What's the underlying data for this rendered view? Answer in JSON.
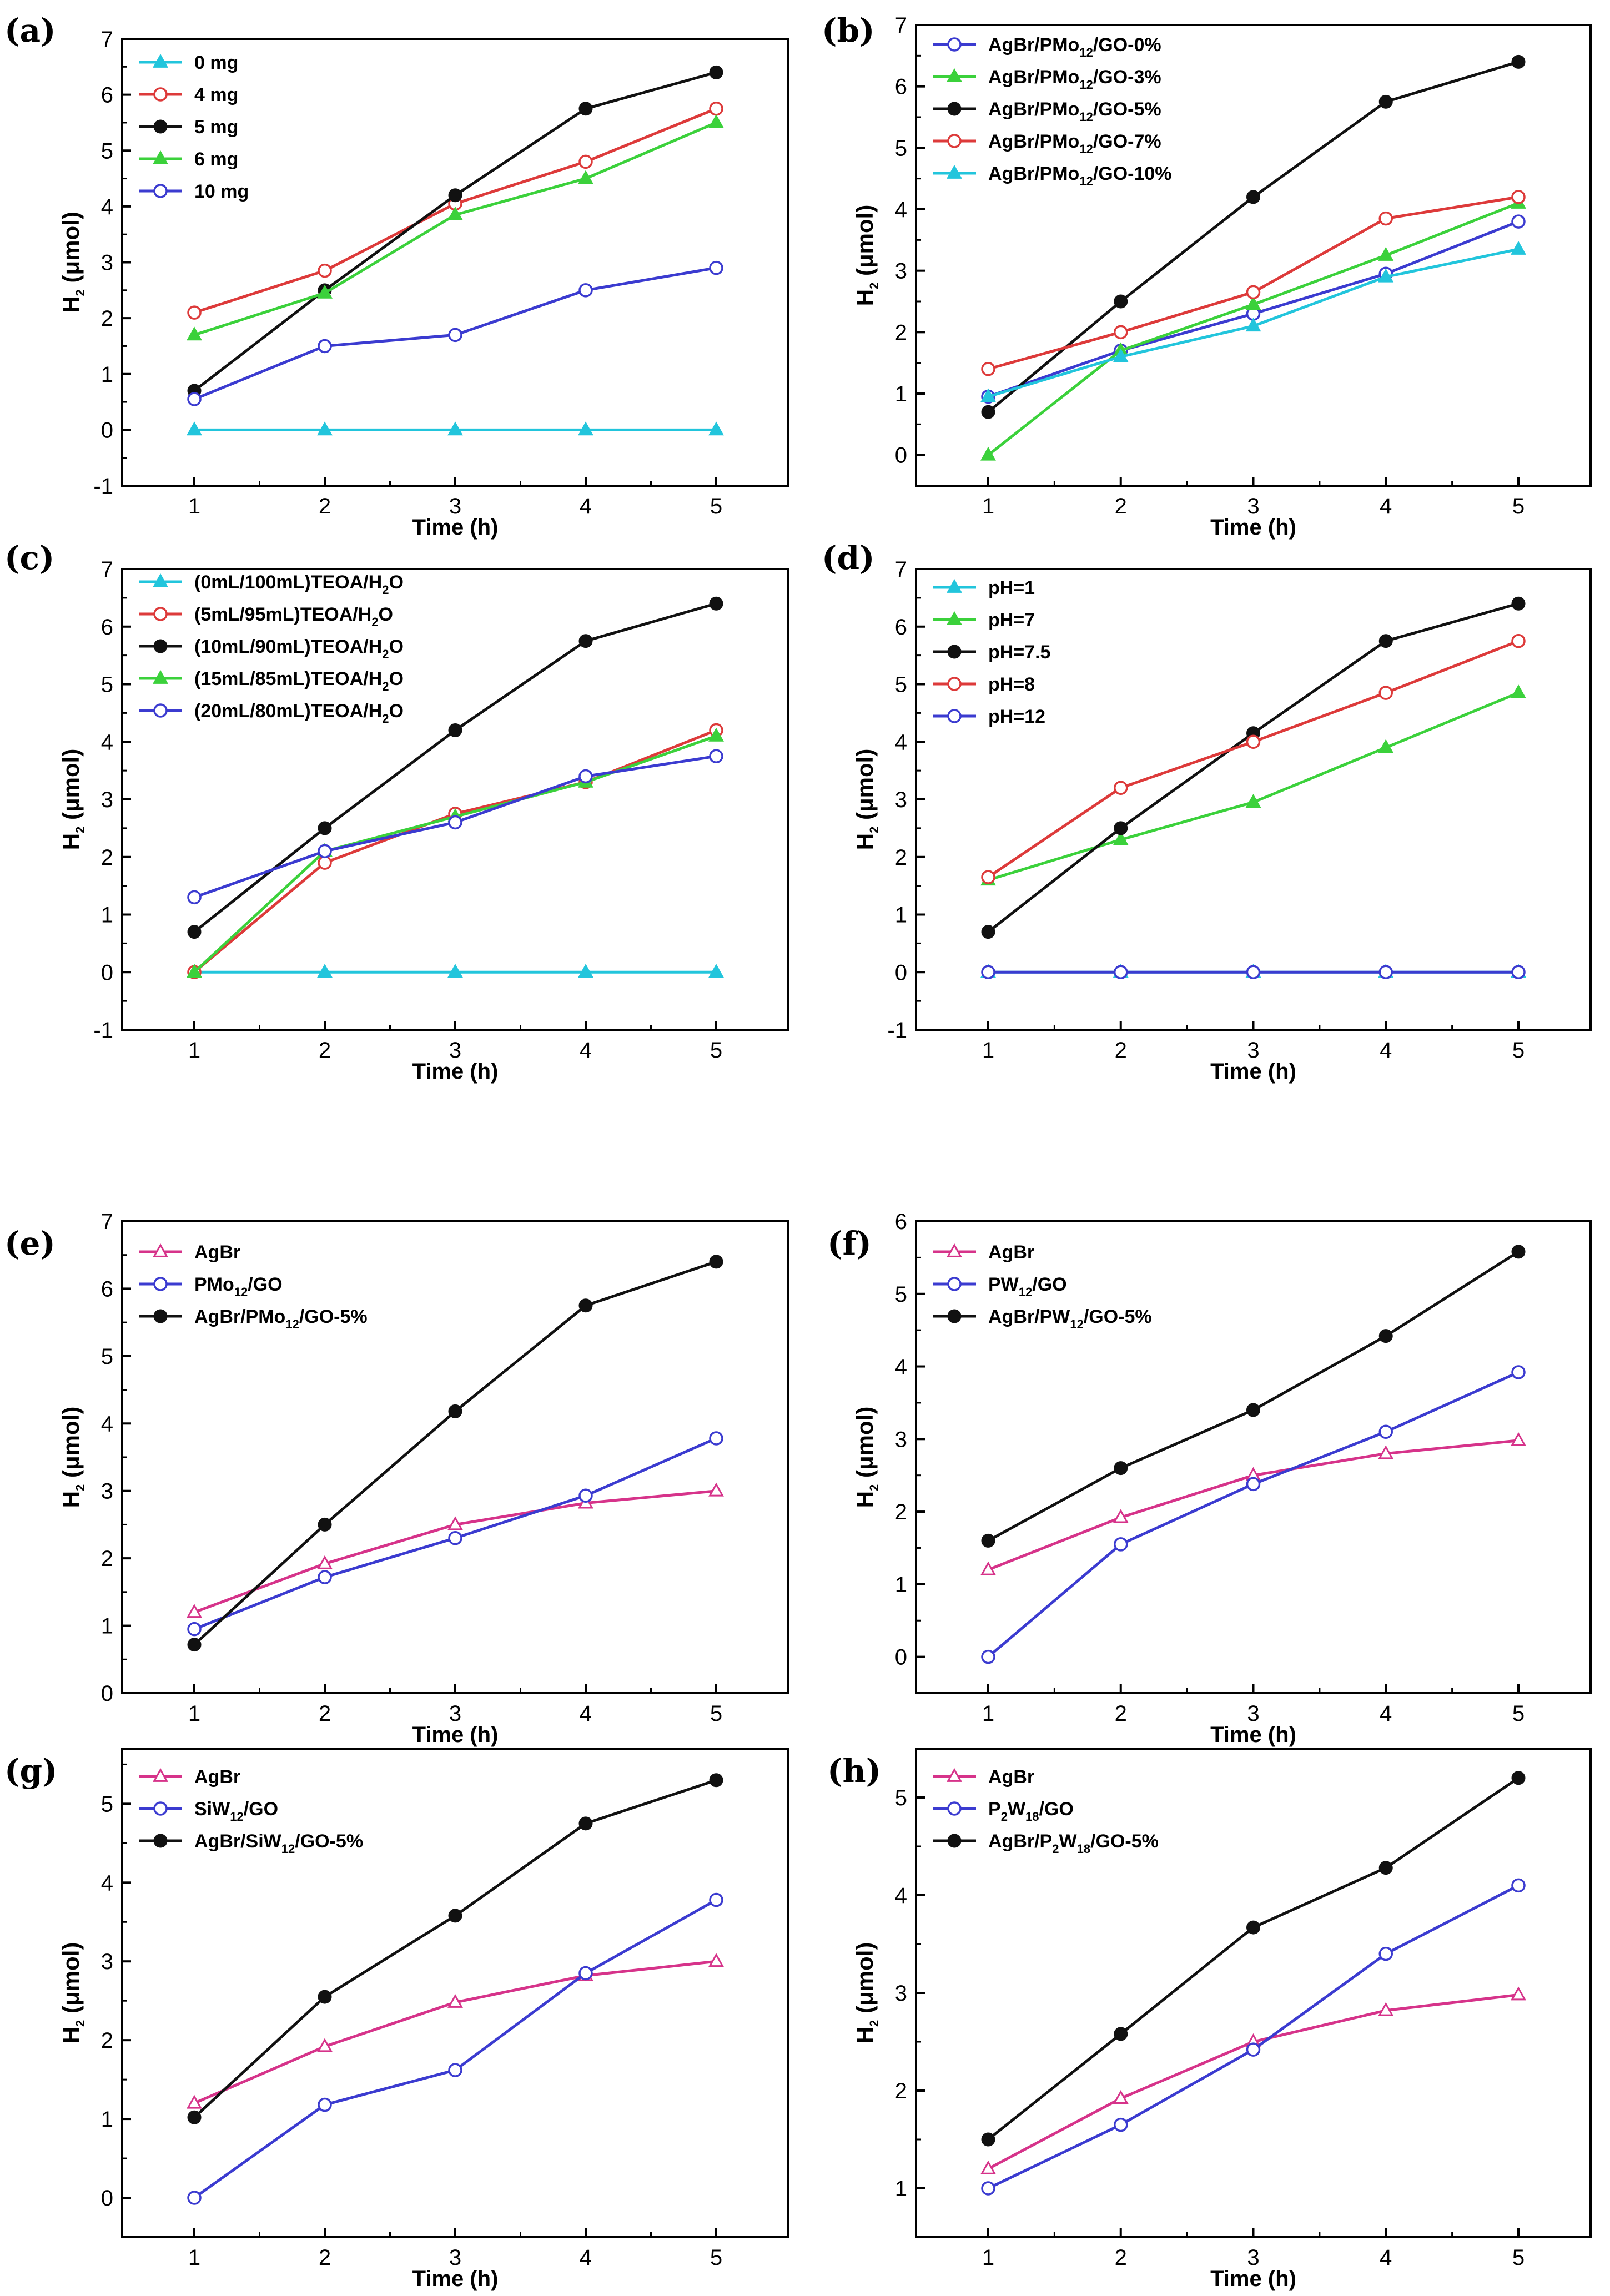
{
  "figure": {
    "background": "#ffffff"
  },
  "chart_data": [
    {
      "panel": "(a)",
      "type": "line",
      "x": [
        1,
        2,
        3,
        4,
        5
      ],
      "xlabel": "Time (h)",
      "ylabel": "H2 (μmol)",
      "ylim": [
        -1,
        7
      ],
      "xticks": [
        "1",
        "2",
        "3",
        "4",
        "5"
      ],
      "yticks": [
        "-1",
        "0",
        "1",
        "2",
        "3",
        "4",
        "5",
        "6",
        "7"
      ],
      "legend_position": "top-left",
      "series": [
        {
          "name": "0 mg",
          "color": "#22c5dc",
          "marker": "triangle",
          "values": [
            0,
            0,
            0,
            0,
            0
          ]
        },
        {
          "name": "4 mg",
          "color": "#dd3a3a",
          "marker": "circle-open",
          "values": [
            2.1,
            2.85,
            4.05,
            4.8,
            5.75
          ]
        },
        {
          "name": "5 mg",
          "color": "#111111",
          "marker": "circle-filled",
          "values": [
            0.7,
            2.5,
            4.2,
            5.75,
            6.4
          ]
        },
        {
          "name": "6 mg",
          "color": "#3bd13b",
          "marker": "triangle",
          "values": [
            1.7,
            2.45,
            3.85,
            4.5,
            5.5
          ]
        },
        {
          "name": "10 mg",
          "color": "#3b3bd0",
          "marker": "circle-open",
          "values": [
            0.55,
            1.5,
            1.7,
            2.5,
            2.9
          ]
        }
      ]
    },
    {
      "panel": "(b)",
      "type": "line",
      "x": [
        1,
        2,
        3,
        4,
        5
      ],
      "xlabel": "Time (h)",
      "ylabel": "H2 (μmol)",
      "ylim": [
        -0.5,
        7
      ],
      "xticks": [
        "1",
        "2",
        "3",
        "4",
        "5"
      ],
      "yticks": [
        "0",
        "1",
        "2",
        "3",
        "4",
        "5",
        "6",
        "7"
      ],
      "legend_position": "top-left",
      "series": [
        {
          "name": "AgBr/PMo12/GO-0%",
          "label_parts": [
            "AgBr/PMo",
            "12",
            "/GO-0%"
          ],
          "color": "#3b3bd0",
          "marker": "circle-open",
          "values": [
            0.95,
            1.7,
            2.3,
            2.95,
            3.8
          ]
        },
        {
          "name": "AgBr/PMo12/GO-3%",
          "label_parts": [
            "AgBr/PMo",
            "12",
            "/GO-3%"
          ],
          "color": "#3bd13b",
          "marker": "triangle",
          "values": [
            0.0,
            1.7,
            2.45,
            3.25,
            4.1
          ]
        },
        {
          "name": "AgBr/PMo12/GO-5%",
          "label_parts": [
            "AgBr/PMo",
            "12",
            "/GO-5%"
          ],
          "color": "#111111",
          "marker": "circle-filled",
          "values": [
            0.7,
            2.5,
            4.2,
            5.75,
            6.4
          ]
        },
        {
          "name": "AgBr/PMo12/GO-7%",
          "label_parts": [
            "AgBr/PMo",
            "12",
            "/GO-7%"
          ],
          "color": "#dd3a3a",
          "marker": "circle-open",
          "values": [
            1.4,
            2.0,
            2.65,
            3.85,
            4.2
          ]
        },
        {
          "name": "AgBr/PMo12/GO-10%",
          "label_parts": [
            "AgBr/PMo",
            "12",
            "/GO-10%"
          ],
          "color": "#22c5dc",
          "marker": "triangle",
          "values": [
            0.95,
            1.6,
            2.1,
            2.9,
            3.35
          ]
        }
      ]
    },
    {
      "panel": "(c)",
      "type": "line",
      "x": [
        1,
        2,
        3,
        4,
        5
      ],
      "xlabel": "Time (h)",
      "ylabel": "H2 (μmol)",
      "ylim": [
        -1,
        7
      ],
      "xticks": [
        "1",
        "2",
        "3",
        "4",
        "5"
      ],
      "yticks": [
        "-1",
        "0",
        "1",
        "2",
        "3",
        "4",
        "5",
        "6",
        "7"
      ],
      "legend_position": "top-left",
      "series": [
        {
          "name": "(0mL/100mL)TEOA/H2O",
          "label_parts": [
            "(0mL/100mL)TEOA/H",
            "2",
            "O"
          ],
          "color": "#22c5dc",
          "marker": "triangle",
          "values": [
            0,
            0,
            0,
            0,
            0
          ]
        },
        {
          "name": "(5mL/95mL)TEOA/H2O",
          "label_parts": [
            "(5mL/95mL)TEOA/H",
            "2",
            "O"
          ],
          "color": "#dd3a3a",
          "marker": "circle-open",
          "values": [
            0.0,
            1.9,
            2.75,
            3.3,
            4.2
          ]
        },
        {
          "name": "(10mL/90mL)TEOA/H2O",
          "label_parts": [
            "(10mL/90mL)TEOA/H",
            "2",
            "O"
          ],
          "color": "#111111",
          "marker": "circle-filled",
          "values": [
            0.7,
            2.5,
            4.2,
            5.75,
            6.4
          ]
        },
        {
          "name": "(15mL/85mL)TEOA/H2O",
          "label_parts": [
            "(15mL/85mL)TEOA/H",
            "2",
            "O"
          ],
          "color": "#3bd13b",
          "marker": "triangle",
          "values": [
            0.0,
            2.1,
            2.7,
            3.3,
            4.1
          ]
        },
        {
          "name": "(20mL/80mL)TEOA/H2O",
          "label_parts": [
            "(20mL/80mL)TEOA/H",
            "2",
            "O"
          ],
          "color": "#3b3bd0",
          "marker": "circle-open",
          "values": [
            1.3,
            2.1,
            2.6,
            3.4,
            3.75
          ]
        }
      ]
    },
    {
      "panel": "(d)",
      "type": "line",
      "x": [
        1,
        2,
        3,
        4,
        5
      ],
      "xlabel": "Time (h)",
      "ylabel": "H2 (μmol)",
      "ylim": [
        -1,
        7
      ],
      "xticks": [
        "1",
        "2",
        "3",
        "4",
        "5"
      ],
      "yticks": [
        "-1",
        "0",
        "1",
        "2",
        "3",
        "4",
        "5",
        "6",
        "7"
      ],
      "legend_position": "top-left",
      "series": [
        {
          "name": "pH=1",
          "color": "#22c5dc",
          "marker": "triangle",
          "values": [
            0,
            0,
            0,
            0,
            0
          ]
        },
        {
          "name": "pH=7",
          "color": "#3bd13b",
          "marker": "triangle",
          "values": [
            1.6,
            2.3,
            2.95,
            3.9,
            4.85
          ]
        },
        {
          "name": "pH=7.5",
          "color": "#111111",
          "marker": "circle-filled",
          "values": [
            0.7,
            2.5,
            4.15,
            5.75,
            6.4
          ]
        },
        {
          "name": "pH=8",
          "color": "#dd3a3a",
          "marker": "circle-open",
          "values": [
            1.65,
            3.2,
            4.0,
            4.85,
            5.75
          ]
        },
        {
          "name": "pH=12",
          "color": "#3b3bd0",
          "marker": "circle-open",
          "values": [
            0,
            0,
            0,
            0,
            0
          ]
        }
      ]
    },
    {
      "panel": "(e)",
      "type": "line",
      "x": [
        1,
        2,
        3,
        4,
        5
      ],
      "xlabel": "Time (h)",
      "ylabel": "H2 (μmol)",
      "ylim": [
        0,
        7
      ],
      "xticks": [
        "1",
        "2",
        "3",
        "4",
        "5"
      ],
      "yticks": [
        "0",
        "1",
        "2",
        "3",
        "4",
        "5",
        "6",
        "7"
      ],
      "legend_position": "top-left",
      "series": [
        {
          "name": "AgBr",
          "color": "#d6338a",
          "marker": "triangle",
          "values": [
            1.2,
            1.92,
            2.5,
            2.82,
            3.0
          ]
        },
        {
          "name": "PMo12/GO",
          "label_parts": [
            "PMo",
            "12",
            "/GO"
          ],
          "color": "#3b3bd0",
          "marker": "circle-open",
          "values": [
            0.95,
            1.72,
            2.3,
            2.93,
            3.78
          ]
        },
        {
          "name": "AgBr/PMo12/GO-5%",
          "label_parts": [
            "AgBr/PMo",
            "12",
            "/GO-5%"
          ],
          "color": "#111111",
          "marker": "circle-filled",
          "values": [
            0.72,
            2.5,
            4.18,
            5.75,
            6.4
          ]
        }
      ]
    },
    {
      "panel": "(f)",
      "type": "line",
      "x": [
        1,
        2,
        3,
        4,
        5
      ],
      "xlabel": "Time (h)",
      "ylabel": "H2 (μmol)",
      "ylim": [
        -0.5,
        6
      ],
      "xticks": [
        "1",
        "2",
        "3",
        "4",
        "5"
      ],
      "yticks": [
        "0",
        "1",
        "2",
        "3",
        "4",
        "5",
        "6"
      ],
      "legend_position": "top-left",
      "series": [
        {
          "name": "AgBr",
          "color": "#d6338a",
          "marker": "triangle",
          "values": [
            1.2,
            1.92,
            2.5,
            2.8,
            2.98
          ]
        },
        {
          "name": "PW12/GO",
          "label_parts": [
            "PW",
            "12",
            "/GO"
          ],
          "color": "#3b3bd0",
          "marker": "circle-open",
          "values": [
            0.0,
            1.55,
            2.38,
            3.1,
            3.92
          ]
        },
        {
          "name": "AgBr/PW12/GO-5%",
          "label_parts": [
            "AgBr/PW",
            "12",
            "/GO-5%"
          ],
          "color": "#111111",
          "marker": "circle-filled",
          "values": [
            1.6,
            2.6,
            3.4,
            4.42,
            5.58
          ]
        }
      ]
    },
    {
      "panel": "(g)",
      "type": "line",
      "x": [
        1,
        2,
        3,
        4,
        5
      ],
      "xlabel": "Time (h)",
      "ylabel": "H2 (μmol)",
      "ylim": [
        -0.5,
        5.7
      ],
      "xticks": [
        "1",
        "2",
        "3",
        "4",
        "5"
      ],
      "yticks": [
        "0",
        "1",
        "2",
        "3",
        "4",
        "5"
      ],
      "legend_position": "top-left",
      "series": [
        {
          "name": "AgBr",
          "color": "#d6338a",
          "marker": "triangle",
          "values": [
            1.2,
            1.92,
            2.48,
            2.82,
            3.0
          ]
        },
        {
          "name": "SiW12/GO",
          "label_parts": [
            "SiW",
            "12",
            "/GO"
          ],
          "color": "#3b3bd0",
          "marker": "circle-open",
          "values": [
            0.0,
            1.18,
            1.62,
            2.85,
            3.78
          ]
        },
        {
          "name": "AgBr/SiW12/GO-5%",
          "label_parts": [
            "AgBr/SiW",
            "12",
            "/GO-5%"
          ],
          "color": "#111111",
          "marker": "circle-filled",
          "values": [
            1.02,
            2.55,
            3.58,
            4.75,
            5.3
          ]
        }
      ]
    },
    {
      "panel": "(h)",
      "type": "line",
      "x": [
        1,
        2,
        3,
        4,
        5
      ],
      "xlabel": "Time (h)",
      "ylabel": "H2 (μmol)",
      "ylim": [
        0.5,
        5.5
      ],
      "xticks": [
        "1",
        "2",
        "3",
        "4",
        "5"
      ],
      "yticks": [
        "1",
        "2",
        "3",
        "4",
        "5"
      ],
      "legend_position": "top-left",
      "series": [
        {
          "name": "AgBr",
          "color": "#d6338a",
          "marker": "triangle",
          "values": [
            1.2,
            1.92,
            2.5,
            2.82,
            2.98
          ]
        },
        {
          "name": "P2W18/GO",
          "label_parts": [
            "P",
            "2",
            "W",
            "18",
            "/GO"
          ],
          "color": "#3b3bd0",
          "marker": "circle-open",
          "values": [
            1.0,
            1.65,
            2.42,
            3.4,
            4.1
          ]
        },
        {
          "name": "AgBr/P2W18/GO-5%",
          "label_parts": [
            "AgBr/P",
            "2",
            "W",
            "18",
            "/GO-5%"
          ],
          "color": "#111111",
          "marker": "circle-filled",
          "values": [
            1.5,
            2.58,
            3.67,
            4.28,
            5.2
          ]
        }
      ]
    }
  ]
}
